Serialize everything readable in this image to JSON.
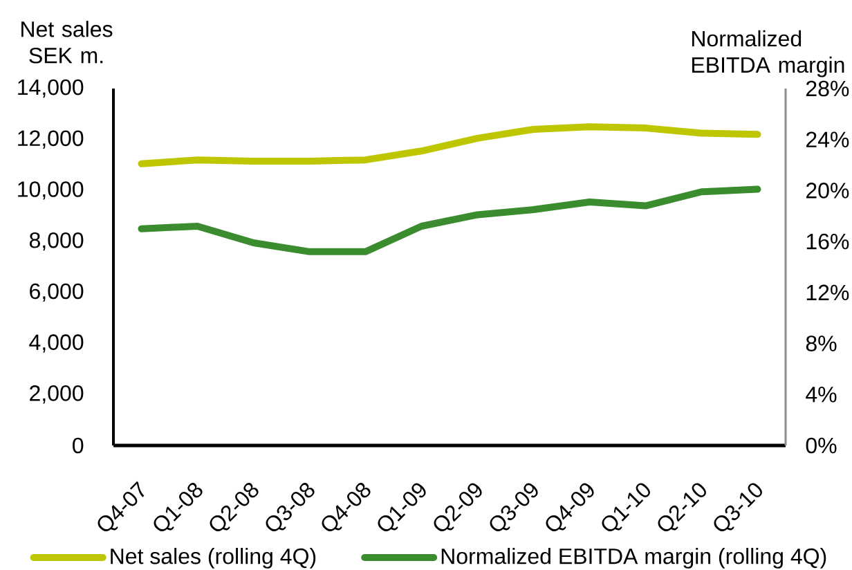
{
  "chart_data": {
    "type": "line",
    "ylabel": "Net sales SEK m.",
    "y2label": "Normalized EBITDA margin",
    "categories": [
      "Q4-07",
      "Q1-08",
      "Q2-08",
      "Q3-08",
      "Q4-08",
      "Q1-09",
      "Q2-09",
      "Q3-09",
      "Q4-09",
      "Q1-10",
      "Q2-10",
      "Q3-10"
    ],
    "series": [
      {
        "name": "Net sales (rolling 4Q)",
        "color": "#bec600",
        "values": [
          11050,
          11200,
          11150,
          11150,
          11200,
          11550,
          12050,
          12400,
          12500,
          12450,
          12250,
          12200
        ]
      },
      {
        "name": "Normalized EBITDA margin (rolling 4Q)",
        "color": "#3a8c2e",
        "axis": "y2",
        "values": [
          17.0,
          17.2,
          15.9,
          15.2,
          15.2,
          17.2,
          18.1,
          18.5,
          19.1,
          18.8,
          19.9,
          20.1
        ]
      }
    ],
    "ylim": [
      0,
      14000
    ],
    "yticks": [
      0,
      {
        "value": 2000,
        "label": "2,000"
      },
      {
        "value": 4000,
        "label": "4,000"
      },
      {
        "value": 6000,
        "label": "6,000"
      },
      {
        "value": 8000,
        "label": "8,000"
      },
      {
        "value": 10000,
        "label": "10,000"
      },
      {
        "value": 12000,
        "label": "12,000"
      },
      {
        "value": 14000,
        "label": "14,000"
      }
    ],
    "y2lim": [
      0,
      28
    ],
    "y2ticks": [
      {
        "value": 0,
        "label": "0%"
      },
      {
        "value": 4,
        "label": "4%"
      },
      {
        "value": 8,
        "label": "8%"
      },
      {
        "value": 12,
        "label": "12%"
      },
      {
        "value": 16,
        "label": "16%"
      },
      {
        "value": 20,
        "label": "20%"
      },
      {
        "value": 24,
        "label": "24%"
      },
      {
        "value": 28,
        "label": "28%"
      }
    ],
    "legend": "bottom"
  }
}
